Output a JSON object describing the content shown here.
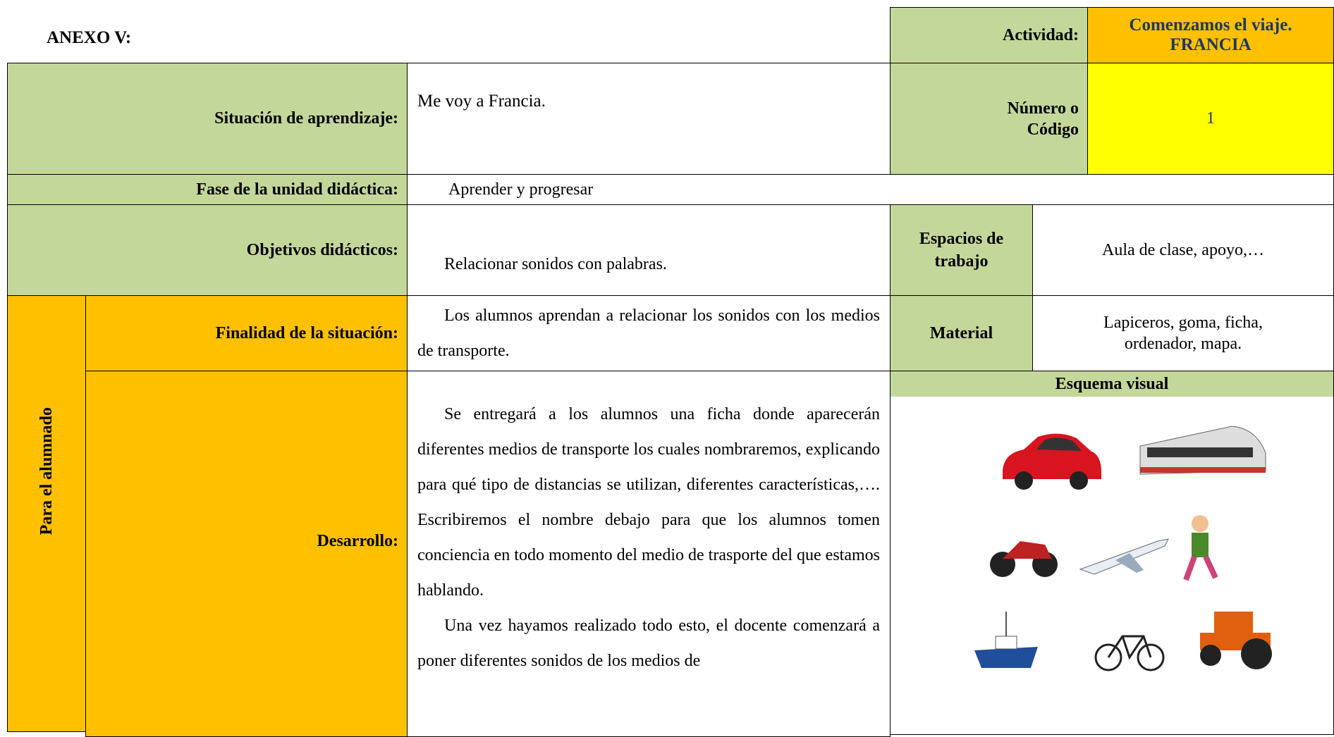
{
  "header": {
    "title": "ANEXO V:",
    "activity_label": "Actividad:",
    "activity_value": "Comenzamos el viaje. FRANCIA"
  },
  "table": {
    "situation": {
      "label": "Situación de aprendizaje:",
      "value": "Me voy a Francia.",
      "code_label": "Número o Código",
      "code_value": "1"
    },
    "phase": {
      "label": "Fase de la unidad didáctica:",
      "value": "Aprender y progresar"
    },
    "objectives": {
      "label": "Objetivos didácticos:",
      "value": "Relacionar sonidos con palabras.",
      "spaces_label": "Espacios de trabajo",
      "spaces_value": "Aula de clase, apoyo,…"
    },
    "side_label": "Para el alumnado",
    "purpose": {
      "label": "Finalidad de la situación:",
      "value": "Los alumnos aprendan a relacionar los sonidos con los medios de transporte.",
      "material_label": "Material",
      "material_value": "Lapiceros, goma, ficha, ordenador, mapa."
    },
    "development": {
      "label": "Desarrollo:",
      "paragraphs": [
        "Se entregará a los alumnos una ficha donde aparecerán diferentes medios de transporte los cuales nombraremos, explicando para qué tipo de distancias se utilizan, diferentes características,…. Escribiremos el nombre debajo para que los alumnos tomen conciencia en todo momento del medio de trasporte del que estamos hablando.",
        "Una vez hayamos realizado todo esto, el docente comenzará a poner diferentes sonidos de los medios de"
      ]
    },
    "visual_label": "Esquema visual"
  }
}
